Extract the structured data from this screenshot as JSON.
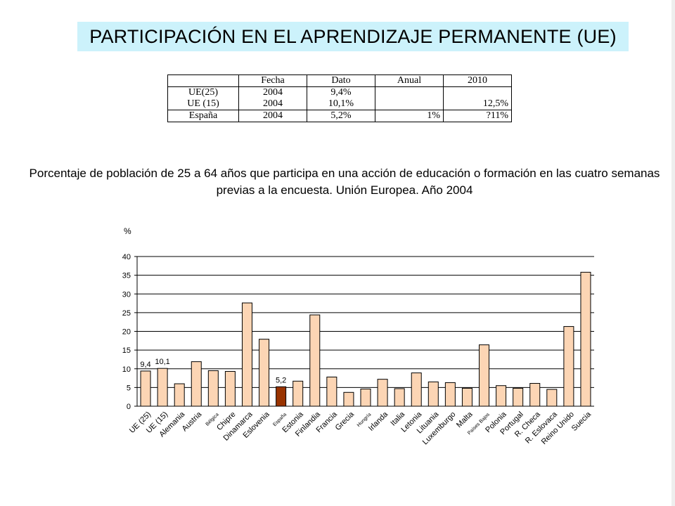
{
  "header": {
    "title": "PARTICIPACIÓN EN EL APRENDIZAJE PERMANENTE (UE)"
  },
  "summary_table": {
    "columns": [
      "",
      "Fecha",
      "Dato",
      "Anual",
      "2010"
    ],
    "rows": [
      {
        "label": "UE(25)",
        "fecha": "2004",
        "dato": "9,4%",
        "anual": "",
        "target": ""
      },
      {
        "label": "UE (15)",
        "fecha": "2004",
        "dato": "10,1%",
        "anual": "",
        "target": "12,5%"
      },
      {
        "label": "España",
        "fecha": "2004",
        "dato": "5,2%",
        "anual": "1%",
        "target": "?11%"
      }
    ]
  },
  "chart_data": {
    "type": "bar",
    "title": "Porcentaje de población de 25 a 64 años que participa en una acción de educación o formación en las cuatro semanas previas a la encuesta. Unión Europea. Año 2004",
    "ylabel": "%",
    "xlabel": "",
    "ylim": [
      0,
      40
    ],
    "yticks": [
      "0",
      "5",
      "10",
      "15",
      "20",
      "25",
      "30",
      "35",
      "40"
    ],
    "grid": true,
    "legend": "none",
    "bar_color": "#fcd5b4",
    "highlight_color": "#993300",
    "categories": [
      "UE (25)",
      "UE (15)",
      "Alemania",
      "Austria",
      "Bélgica",
      "Chipre",
      "Dinamarca",
      "Eslovenia",
      "España",
      "Estonia",
      "Finlandia",
      "Francia",
      "Grecia",
      "Hungría",
      "Irlanda",
      "Italia",
      "Letonia",
      "Lituania",
      "Luxemburgo",
      "Malta",
      "Países Bajos",
      "Polonia",
      "Portugal",
      "R. Checa",
      "R. Eslovaca",
      "Reino Unido",
      "Suecia"
    ],
    "small_label_indices": [
      4,
      8,
      13,
      20
    ],
    "values": [
      9.4,
      10.1,
      6.0,
      11.9,
      9.5,
      9.3,
      27.6,
      17.9,
      5.2,
      6.7,
      24.4,
      7.8,
      3.7,
      4.6,
      7.2,
      4.7,
      8.9,
      6.5,
      6.3,
      4.8,
      16.4,
      5.5,
      4.8,
      6.1,
      4.5,
      21.3,
      35.8
    ],
    "highlight_index": 8,
    "data_labels": [
      {
        "index": 0,
        "text": "9,4"
      },
      {
        "index": 1,
        "text": "10,1"
      },
      {
        "index": 8,
        "text": "5,2"
      }
    ]
  }
}
